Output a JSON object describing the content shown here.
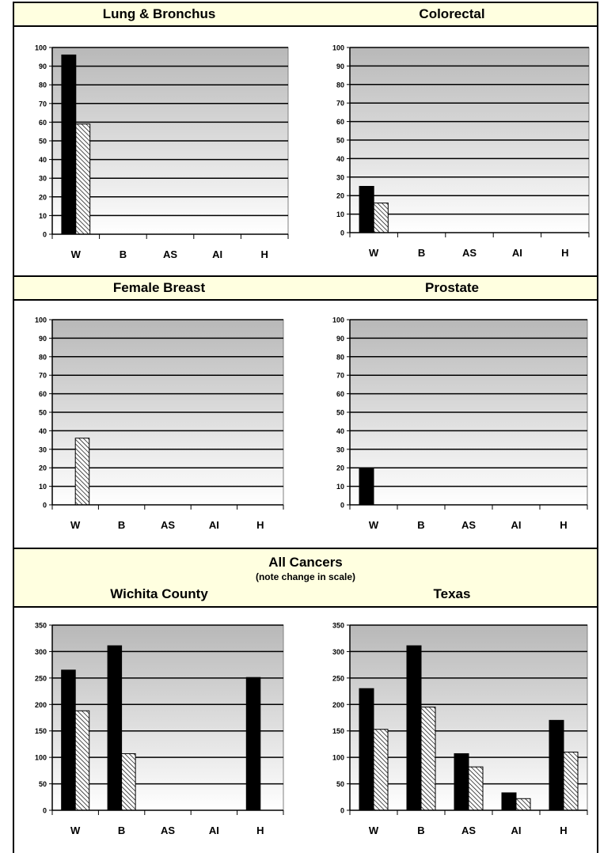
{
  "section_titles": {
    "lung": "Lung & Bronchus",
    "colorectal": "Colorectal",
    "breast": "Female Breast",
    "prostate": "Prostate",
    "all_title": "All Cancers",
    "all_note": "(note change in scale)",
    "wichita": "Wichita County",
    "texas": "Texas"
  },
  "colors": {
    "band": "#ffffe0",
    "plot_top": "#b8b8b8",
    "plot_bottom": "#ffffff",
    "bar_solid": "#000000"
  },
  "chart_data": [
    {
      "type": "bar",
      "title": "Lung & Bronchus",
      "categories": [
        "W",
        "B",
        "AS",
        "AI",
        "H"
      ],
      "series": [
        {
          "values": [
            96,
            null,
            null,
            null,
            null
          ]
        },
        {
          "values": [
            59,
            null,
            null,
            null,
            null
          ]
        }
      ],
      "ylim": [
        0,
        100
      ],
      "yticks": [
        0,
        10,
        20,
        30,
        40,
        50,
        60,
        70,
        80,
        90,
        100
      ],
      "grid": true
    },
    {
      "type": "bar",
      "title": "Colorectal",
      "categories": [
        "W",
        "B",
        "AS",
        "AI",
        "H"
      ],
      "series": [
        {
          "values": [
            25,
            null,
            null,
            null,
            null
          ]
        },
        {
          "values": [
            16,
            null,
            null,
            null,
            null
          ]
        }
      ],
      "ylim": [
        0,
        100
      ],
      "yticks": [
        0,
        10,
        20,
        30,
        40,
        50,
        60,
        70,
        80,
        90,
        100
      ],
      "grid": true
    },
    {
      "type": "bar",
      "title": "Female Breast",
      "categories": [
        "W",
        "B",
        "AS",
        "AI",
        "H"
      ],
      "series": [
        {
          "values": [
            null,
            null,
            null,
            null,
            null
          ]
        },
        {
          "values": [
            36,
            null,
            null,
            null,
            null
          ]
        }
      ],
      "ylim": [
        0,
        100
      ],
      "yticks": [
        0,
        10,
        20,
        30,
        40,
        50,
        60,
        70,
        80,
        90,
        100
      ],
      "grid": true
    },
    {
      "type": "bar",
      "title": "Prostate",
      "categories": [
        "W",
        "B",
        "AS",
        "AI",
        "H"
      ],
      "series": [
        {
          "values": [
            20,
            null,
            null,
            null,
            null
          ]
        },
        {
          "values": [
            null,
            null,
            null,
            null,
            null
          ]
        }
      ],
      "ylim": [
        0,
        100
      ],
      "yticks": [
        0,
        10,
        20,
        30,
        40,
        50,
        60,
        70,
        80,
        90,
        100
      ],
      "grid": true
    },
    {
      "type": "bar",
      "title": "Wichita County",
      "categories": [
        "W",
        "B",
        "AS",
        "AI",
        "H"
      ],
      "series": [
        {
          "values": [
            265,
            311,
            null,
            null,
            251
          ]
        },
        {
          "values": [
            188,
            107,
            null,
            null,
            null
          ]
        }
      ],
      "ylim": [
        0,
        350
      ],
      "yticks": [
        0,
        50,
        100,
        150,
        200,
        250,
        300,
        350
      ],
      "grid": true
    },
    {
      "type": "bar",
      "title": "Texas",
      "categories": [
        "W",
        "B",
        "AS",
        "AI",
        "H"
      ],
      "series": [
        {
          "values": [
            230,
            311,
            107,
            33,
            170
          ]
        },
        {
          "values": [
            153,
            195,
            82,
            22,
            110
          ]
        }
      ],
      "ylim": [
        0,
        350
      ],
      "yticks": [
        0,
        50,
        100,
        150,
        200,
        250,
        300,
        350
      ],
      "grid": true
    }
  ]
}
